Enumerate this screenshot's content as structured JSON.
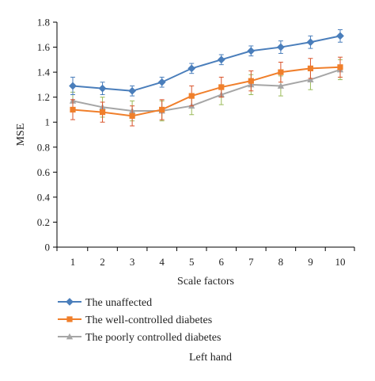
{
  "chart_data": {
    "type": "line",
    "title": "",
    "xlabel": "Scale factors",
    "ylabel": "MSE",
    "caption": "Left hand",
    "xlim": [
      1,
      10
    ],
    "ylim": [
      0,
      1.8
    ],
    "y_ticks": [
      "0",
      "0.2",
      "0.4",
      "0.6",
      "0.8",
      "1",
      "1.2",
      "1.4",
      "1.6",
      "1.8"
    ],
    "categories": [
      "1",
      "2",
      "3",
      "4",
      "5",
      "6",
      "7",
      "8",
      "9",
      "10"
    ],
    "grid": false,
    "legend_position": "bottom",
    "series": [
      {
        "name": "The unaffected",
        "color": "#4a7ebb",
        "marker": "diamond",
        "values": [
          1.29,
          1.27,
          1.25,
          1.32,
          1.43,
          1.5,
          1.57,
          1.6,
          1.64,
          1.69
        ],
        "error": [
          0.07,
          0.05,
          0.04,
          0.04,
          0.04,
          0.04,
          0.04,
          0.05,
          0.05,
          0.05
        ],
        "error_color": "#4a7ebb"
      },
      {
        "name": "The well-controlled diabetes",
        "color": "#f07f2b",
        "marker": "square",
        "values": [
          1.1,
          1.08,
          1.05,
          1.1,
          1.21,
          1.28,
          1.33,
          1.4,
          1.43,
          1.44
        ],
        "error": [
          0.08,
          0.08,
          0.08,
          0.08,
          0.08,
          0.08,
          0.08,
          0.08,
          0.08,
          0.08
        ],
        "error_color": "#d9542c"
      },
      {
        "name": "The poorly controlled diabetes",
        "color": "#a6a6a6",
        "marker": "triangle",
        "values": [
          1.17,
          1.12,
          1.09,
          1.09,
          1.13,
          1.22,
          1.3,
          1.29,
          1.34,
          1.42
        ],
        "error": [
          0.07,
          0.08,
          0.08,
          0.08,
          0.07,
          0.08,
          0.08,
          0.08,
          0.08,
          0.08
        ],
        "error_color": "#9bbb59"
      }
    ]
  }
}
